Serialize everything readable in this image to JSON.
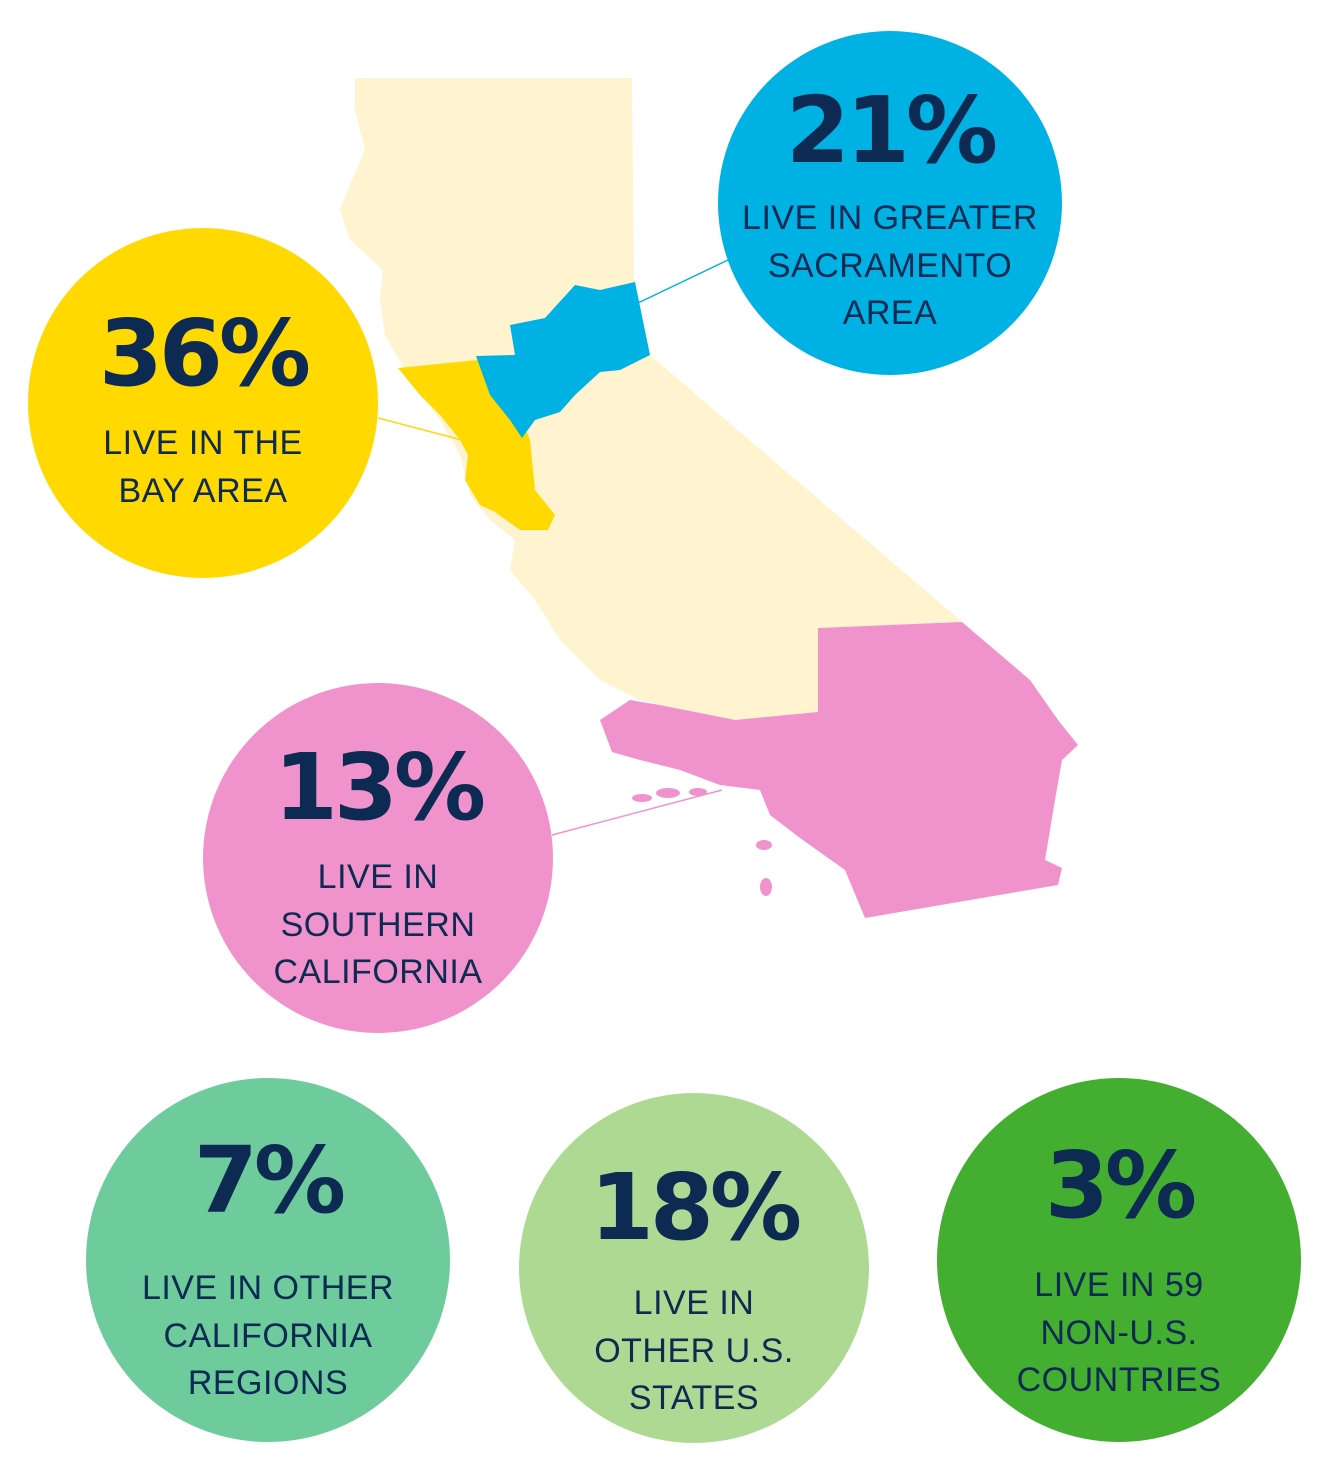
{
  "colors": {
    "state_base": "#fff4cf",
    "bay": "#ffd900",
    "sacramento": "#00b1e3",
    "southern": "#f093cd",
    "other_ca": "#6ecb9c",
    "other_us": "#aed993",
    "non_us": "#43ae30",
    "text": "#0d2a52"
  },
  "map_icon": "california-map",
  "stats": [
    {
      "key": "sacramento",
      "percent": "21%",
      "label": [
        "LIVE IN GREATER",
        "SACRAMENTO",
        "AREA"
      ]
    },
    {
      "key": "bay",
      "percent": "36%",
      "label": [
        "LIVE IN THE",
        "BAY AREA"
      ]
    },
    {
      "key": "southern",
      "percent": "13%",
      "label": [
        "LIVE IN",
        "SOUTHERN",
        "CALIFORNIA"
      ]
    },
    {
      "key": "other_ca",
      "percent": "7%",
      "label": [
        "LIVE IN OTHER",
        "CALIFORNIA",
        "REGIONS"
      ]
    },
    {
      "key": "other_us",
      "percent": "18%",
      "label": [
        "LIVE IN",
        "OTHER U.S.",
        "STATES"
      ]
    },
    {
      "key": "non_us",
      "percent": "3%",
      "label": [
        "LIVE IN 59",
        "NON-U.S.",
        "COUNTRIES"
      ]
    }
  ]
}
